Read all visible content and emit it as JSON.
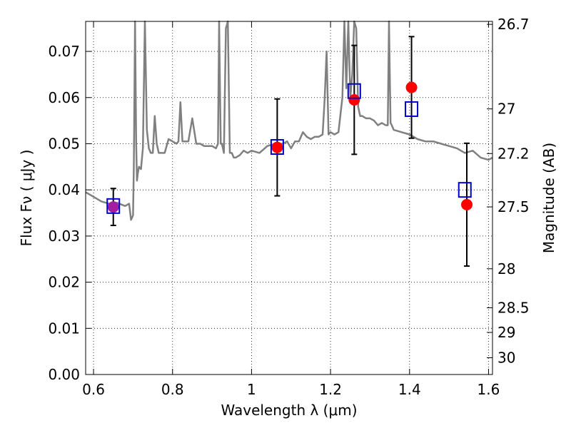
{
  "chart_data": {
    "type": "line",
    "title": "",
    "xlabel": "Wavelength  λ (μm)",
    "ylabel": "Flux  Fν  ( μJy )",
    "y2label": "Magnitude (AB)",
    "xlim": [
      0.58,
      1.61
    ],
    "ylim": [
      0.0,
      0.0765
    ],
    "grid": true,
    "x_ticks": [
      0.6,
      0.8,
      1.0,
      1.2,
      1.4,
      1.6
    ],
    "x_tick_labels": [
      "0.6",
      "0.8",
      "1",
      "1.2",
      "1.4",
      "1.6"
    ],
    "y_ticks": [
      0.0,
      0.01,
      0.02,
      0.03,
      0.04,
      0.05,
      0.06,
      0.07
    ],
    "y_tick_labels": [
      "0.00",
      "0.01",
      "0.02",
      "0.03",
      "0.04",
      "0.05",
      "0.06",
      "0.07"
    ],
    "mag_ticks": [
      26.7,
      27.0,
      27.2,
      27.5,
      28.0,
      28.5,
      29.0,
      30.0
    ],
    "mag_tick_labels": [
      "26.7",
      "27",
      "27.2",
      "27.5",
      "28",
      "28.5",
      "29",
      "30"
    ],
    "colors": {
      "model": "#808080",
      "observed": "#ff0000",
      "model_photometry": "#0000cc",
      "overlap": "#a020a0",
      "errorbar": "#000000",
      "grid": "#000000"
    },
    "series": [
      {
        "role": "model spectrum",
        "x": [
          0.58,
          0.6,
          0.62,
          0.64,
          0.66,
          0.68,
          0.69,
          0.695,
          0.7,
          0.702,
          0.705,
          0.708,
          0.71,
          0.712,
          0.715,
          0.72,
          0.725,
          0.73,
          0.735,
          0.74,
          0.745,
          0.75,
          0.755,
          0.76,
          0.765,
          0.77,
          0.78,
          0.79,
          0.8,
          0.81,
          0.815,
          0.82,
          0.825,
          0.83,
          0.84,
          0.85,
          0.86,
          0.87,
          0.88,
          0.89,
          0.9,
          0.91,
          0.915,
          0.918,
          0.92,
          0.922,
          0.925,
          0.93,
          0.935,
          0.94,
          0.945,
          0.95,
          0.955,
          0.96,
          0.97,
          0.98,
          0.99,
          1.0,
          1.02,
          1.04,
          1.06,
          1.08,
          1.09,
          1.1,
          1.11,
          1.12,
          1.13,
          1.14,
          1.15,
          1.16,
          1.17,
          1.18,
          1.185,
          1.19,
          1.195,
          1.2,
          1.21,
          1.22,
          1.23,
          1.235,
          1.24,
          1.245,
          1.25,
          1.255,
          1.26,
          1.265,
          1.27,
          1.275,
          1.28,
          1.29,
          1.3,
          1.31,
          1.32,
          1.33,
          1.34,
          1.345,
          1.348,
          1.35,
          1.352,
          1.355,
          1.36,
          1.38,
          1.4,
          1.42,
          1.44,
          1.46,
          1.48,
          1.5,
          1.52,
          1.54,
          1.56,
          1.58,
          1.6,
          1.61
        ],
        "y": [
          0.0395,
          0.0385,
          0.0375,
          0.037,
          0.0372,
          0.0365,
          0.037,
          0.0335,
          0.0345,
          0.045,
          0.09,
          0.05,
          0.042,
          0.0435,
          0.045,
          0.0445,
          0.049,
          0.09,
          0.053,
          0.049,
          0.048,
          0.048,
          0.056,
          0.05,
          0.048,
          0.048,
          0.048,
          0.051,
          0.0505,
          0.05,
          0.0505,
          0.059,
          0.0505,
          0.0505,
          0.0505,
          0.0555,
          0.05,
          0.05,
          0.0495,
          0.0495,
          0.0495,
          0.049,
          0.05,
          0.09,
          0.062,
          0.05,
          0.05,
          0.048,
          0.075,
          0.09,
          0.048,
          0.048,
          0.047,
          0.047,
          0.0475,
          0.0485,
          0.048,
          0.0485,
          0.048,
          0.0495,
          0.05,
          0.05,
          0.0505,
          0.049,
          0.0505,
          0.0505,
          0.0525,
          0.0515,
          0.051,
          0.0515,
          0.0515,
          0.052,
          0.0595,
          0.07,
          0.052,
          0.0525,
          0.052,
          0.0525,
          0.06,
          0.09,
          0.062,
          0.09,
          0.06,
          0.065,
          0.09,
          0.075,
          0.058,
          0.056,
          0.056,
          0.0555,
          0.0555,
          0.055,
          0.054,
          0.0545,
          0.054,
          0.054,
          0.09,
          0.065,
          0.0545,
          0.054,
          0.053,
          0.0525,
          0.052,
          0.051,
          0.0505,
          0.0505,
          0.05,
          0.0495,
          0.049,
          0.048,
          0.0485,
          0.047,
          0.0465,
          0.047
        ]
      },
      {
        "role": "observed photometry",
        "x": [
          0.65,
          1.065,
          1.26,
          1.405,
          1.545
        ],
        "y": [
          0.0363,
          0.0492,
          0.0595,
          0.0622,
          0.0368
        ],
        "yerr": [
          0.004,
          0.0105,
          0.0118,
          0.011,
          0.0133
        ]
      },
      {
        "role": "model photometry",
        "x": [
          0.65,
          1.065,
          1.26,
          1.405,
          1.54
        ],
        "y": [
          0.0365,
          0.0493,
          0.0614,
          0.0575,
          0.04
        ]
      }
    ]
  }
}
